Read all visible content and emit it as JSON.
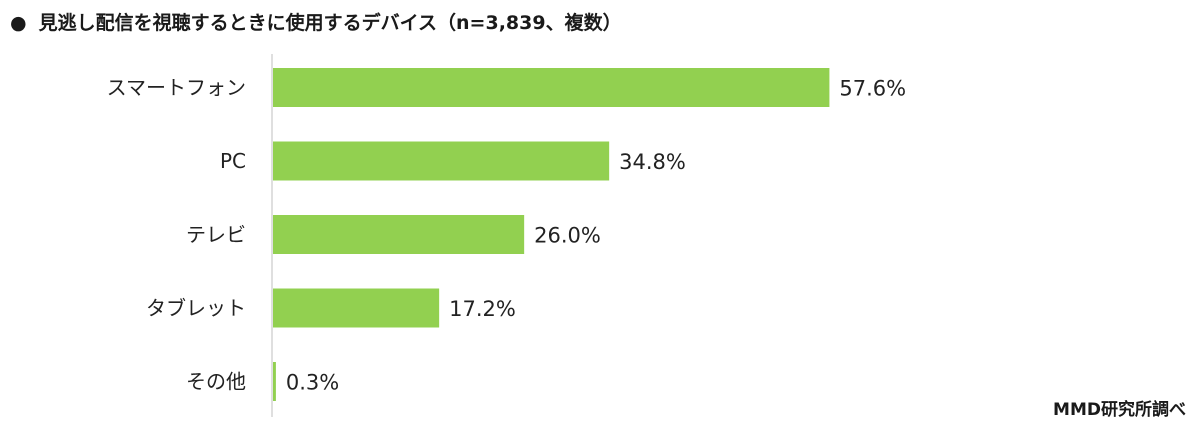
{
  "title": "見逃し配信を視聴するときに使用するデバイス（n=3,839、複数）",
  "bullet": "●",
  "source": "MMD研究所調べ",
  "bar_color": "#92d050",
  "chart_data": {
    "type": "bar",
    "orientation": "horizontal",
    "categories": [
      "スマートフォン",
      "PC",
      "テレビ",
      "タブレット",
      "その他"
    ],
    "values": [
      57.6,
      34.8,
      26.0,
      17.2,
      0.3
    ],
    "value_labels": [
      "57.6%",
      "34.8%",
      "26.0%",
      "17.2%",
      "0.3%"
    ],
    "unit": "%",
    "xlim": [
      0,
      100
    ],
    "grid": false,
    "legend": "none"
  }
}
